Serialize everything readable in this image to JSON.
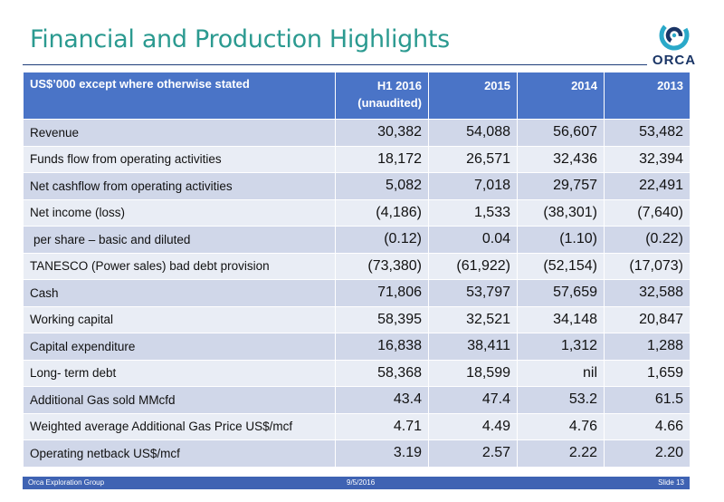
{
  "title": "Financial and Production Highlights",
  "logo": {
    "text": "ORCA",
    "icon": "orca-swirl-icon",
    "colors": [
      "#2aa9c9",
      "#1a3566"
    ]
  },
  "table": {
    "header": {
      "label": "US$’000 except where otherwise stated",
      "columns": [
        {
          "line1": "H1 2016",
          "line2": "(unaudited)"
        },
        {
          "line1": "2015",
          "line2": ""
        },
        {
          "line1": "2014",
          "line2": ""
        },
        {
          "line1": "2013",
          "line2": ""
        }
      ]
    },
    "rows": [
      {
        "label": "Revenue",
        "values": [
          "30,382",
          "54,088",
          "56,607",
          "53,482"
        ]
      },
      {
        "label": "Funds flow from operating activities",
        "values": [
          "18,172",
          "26,571",
          "32,436",
          "32,394"
        ]
      },
      {
        "label": "Net cashflow from operating activities",
        "values": [
          "5,082",
          "7,018",
          "29,757",
          "22,491"
        ]
      },
      {
        "label": "Net income (loss)",
        "values": [
          "(4,186)",
          "1,533",
          "(38,301)",
          "(7,640)"
        ]
      },
      {
        "label": "per share – basic and diluted",
        "values": [
          "(0.12)",
          "0.04",
          "(1.10)",
          "(0.22)"
        ]
      },
      {
        "label": "TANESCO  (Power sales) bad debt provision",
        "values": [
          "(73,380)",
          "(61,922)",
          "(52,154)",
          "(17,073)"
        ]
      },
      {
        "label": "Cash",
        "values": [
          "71,806",
          "53,797",
          "57,659",
          "32,588"
        ]
      },
      {
        "label": "Working capital",
        "values": [
          "58,395",
          "32,521",
          "34,148",
          "20,847"
        ]
      },
      {
        "label": "Capital expenditure",
        "values": [
          "16,838",
          "38,411",
          "1,312",
          "1,288"
        ]
      },
      {
        "label": "Long- term debt",
        "values": [
          "58,368",
          "18,599",
          "nil",
          "1,659"
        ]
      },
      {
        "label": "Additional Gas sold MMcfd",
        "values": [
          "43.4",
          "47.4",
          "53.2",
          "61.5"
        ]
      },
      {
        "label": "Weighted average Additional Gas Price US$/mcf",
        "values": [
          "4.71",
          "4.49",
          "4.76",
          "4.66"
        ]
      },
      {
        "label": "Operating netback US$/mcf",
        "values": [
          "3.19",
          "2.57",
          "2.22",
          "2.20"
        ]
      }
    ]
  },
  "footer": {
    "company": "Orca Exploration Group",
    "date": "9/5/2016",
    "slide": "Slide 13"
  },
  "colors": {
    "title": "#2b9a90",
    "header_bg": "#4a74c7",
    "row_odd": "#d0d7e9",
    "row_even": "#e9edf5",
    "footer_bg": "#3f63b3"
  }
}
